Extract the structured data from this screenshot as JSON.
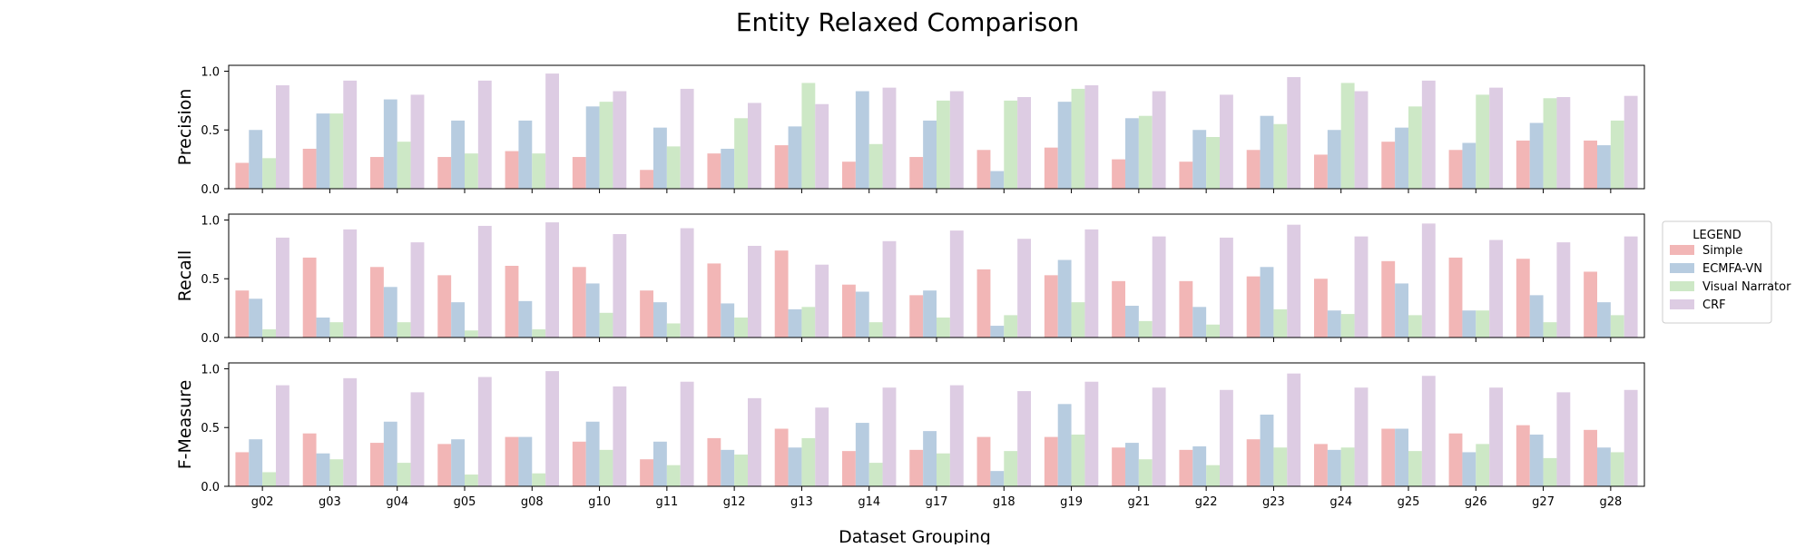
{
  "chart_data": {
    "type": "bar",
    "title": "Entity Relaxed Comparison",
    "xlabel": "Dataset Grouping",
    "categories": [
      "g02",
      "g03",
      "g04",
      "g05",
      "g08",
      "g10",
      "g11",
      "g12",
      "g13",
      "g14",
      "g17",
      "g18",
      "g19",
      "g21",
      "g22",
      "g23",
      "g24",
      "g25",
      "g26",
      "g27",
      "g28"
    ],
    "legend": {
      "title": "LEGEND",
      "placement": "center-right",
      "entries": [
        "Simple",
        "ECMFA-VN",
        "Visual Narrator",
        "CRF"
      ]
    },
    "series_colors": {
      "Simple": "#f2b6b6",
      "ECMFA-VN": "#b7cce0",
      "Visual Narrator": "#cde8c6",
      "CRF": "#ddcce3"
    },
    "panels": [
      {
        "ylabel": "Precision",
        "ylim": [
          0,
          1.05
        ],
        "yticks": [
          "0.0",
          "0.5",
          "1.0"
        ],
        "series": [
          {
            "name": "Simple",
            "values": [
              0.22,
              0.34,
              0.27,
              0.27,
              0.32,
              0.27,
              0.16,
              0.3,
              0.37,
              0.23,
              0.27,
              0.33,
              0.35,
              0.25,
              0.23,
              0.33,
              0.29,
              0.4,
              0.33,
              0.41,
              0.41
            ]
          },
          {
            "name": "ECMFA-VN",
            "values": [
              0.5,
              0.64,
              0.76,
              0.58,
              0.58,
              0.7,
              0.52,
              0.34,
              0.53,
              0.83,
              0.58,
              0.15,
              0.74,
              0.6,
              0.5,
              0.62,
              0.5,
              0.52,
              0.39,
              0.56,
              0.37
            ]
          },
          {
            "name": "Visual Narrator",
            "values": [
              0.26,
              0.64,
              0.4,
              0.3,
              0.3,
              0.74,
              0.36,
              0.6,
              0.9,
              0.38,
              0.75,
              0.75,
              0.85,
              0.62,
              0.44,
              0.55,
              0.9,
              0.7,
              0.8,
              0.77,
              0.58
            ]
          },
          {
            "name": "CRF",
            "values": [
              0.88,
              0.92,
              0.8,
              0.92,
              0.98,
              0.83,
              0.85,
              0.73,
              0.72,
              0.86,
              0.83,
              0.78,
              0.88,
              0.83,
              0.8,
              0.95,
              0.83,
              0.92,
              0.86,
              0.78,
              0.79
            ]
          }
        ]
      },
      {
        "ylabel": "Recall",
        "ylim": [
          0,
          1.05
        ],
        "yticks": [
          "0.0",
          "0.5",
          "1.0"
        ],
        "series": [
          {
            "name": "Simple",
            "values": [
              0.4,
              0.68,
              0.6,
              0.53,
              0.61,
              0.6,
              0.4,
              0.63,
              0.74,
              0.45,
              0.36,
              0.58,
              0.53,
              0.48,
              0.48,
              0.52,
              0.5,
              0.65,
              0.68,
              0.67,
              0.56
            ]
          },
          {
            "name": "ECMFA-VN",
            "values": [
              0.33,
              0.17,
              0.43,
              0.3,
              0.31,
              0.46,
              0.3,
              0.29,
              0.24,
              0.39,
              0.4,
              0.1,
              0.66,
              0.27,
              0.26,
              0.6,
              0.23,
              0.46,
              0.23,
              0.36,
              0.3
            ]
          },
          {
            "name": "Visual Narrator",
            "values": [
              0.07,
              0.13,
              0.13,
              0.06,
              0.07,
              0.21,
              0.12,
              0.17,
              0.26,
              0.13,
              0.17,
              0.19,
              0.3,
              0.14,
              0.11,
              0.24,
              0.2,
              0.19,
              0.23,
              0.13,
              0.19
            ]
          },
          {
            "name": "CRF",
            "values": [
              0.85,
              0.92,
              0.81,
              0.95,
              0.98,
              0.88,
              0.93,
              0.78,
              0.62,
              0.82,
              0.91,
              0.84,
              0.92,
              0.86,
              0.85,
              0.96,
              0.86,
              0.97,
              0.83,
              0.81,
              0.86
            ]
          }
        ]
      },
      {
        "ylabel": "F-Measure",
        "ylim": [
          0,
          1.05
        ],
        "yticks": [
          "0.0",
          "0.5",
          "1.0"
        ],
        "series": [
          {
            "name": "Simple",
            "values": [
              0.29,
              0.45,
              0.37,
              0.36,
              0.42,
              0.38,
              0.23,
              0.41,
              0.49,
              0.3,
              0.31,
              0.42,
              0.42,
              0.33,
              0.31,
              0.4,
              0.36,
              0.49,
              0.45,
              0.52,
              0.48
            ]
          },
          {
            "name": "ECMFA-VN",
            "values": [
              0.4,
              0.28,
              0.55,
              0.4,
              0.42,
              0.55,
              0.38,
              0.31,
              0.33,
              0.54,
              0.47,
              0.13,
              0.7,
              0.37,
              0.34,
              0.61,
              0.31,
              0.49,
              0.29,
              0.44,
              0.33
            ]
          },
          {
            "name": "Visual Narrator",
            "values": [
              0.12,
              0.23,
              0.2,
              0.1,
              0.11,
              0.31,
              0.18,
              0.27,
              0.41,
              0.2,
              0.28,
              0.3,
              0.44,
              0.23,
              0.18,
              0.33,
              0.33,
              0.3,
              0.36,
              0.24,
              0.29
            ]
          },
          {
            "name": "CRF",
            "values": [
              0.86,
              0.92,
              0.8,
              0.93,
              0.98,
              0.85,
              0.89,
              0.75,
              0.67,
              0.84,
              0.86,
              0.81,
              0.89,
              0.84,
              0.82,
              0.96,
              0.84,
              0.94,
              0.84,
              0.8,
              0.82
            ]
          }
        ]
      }
    ]
  }
}
